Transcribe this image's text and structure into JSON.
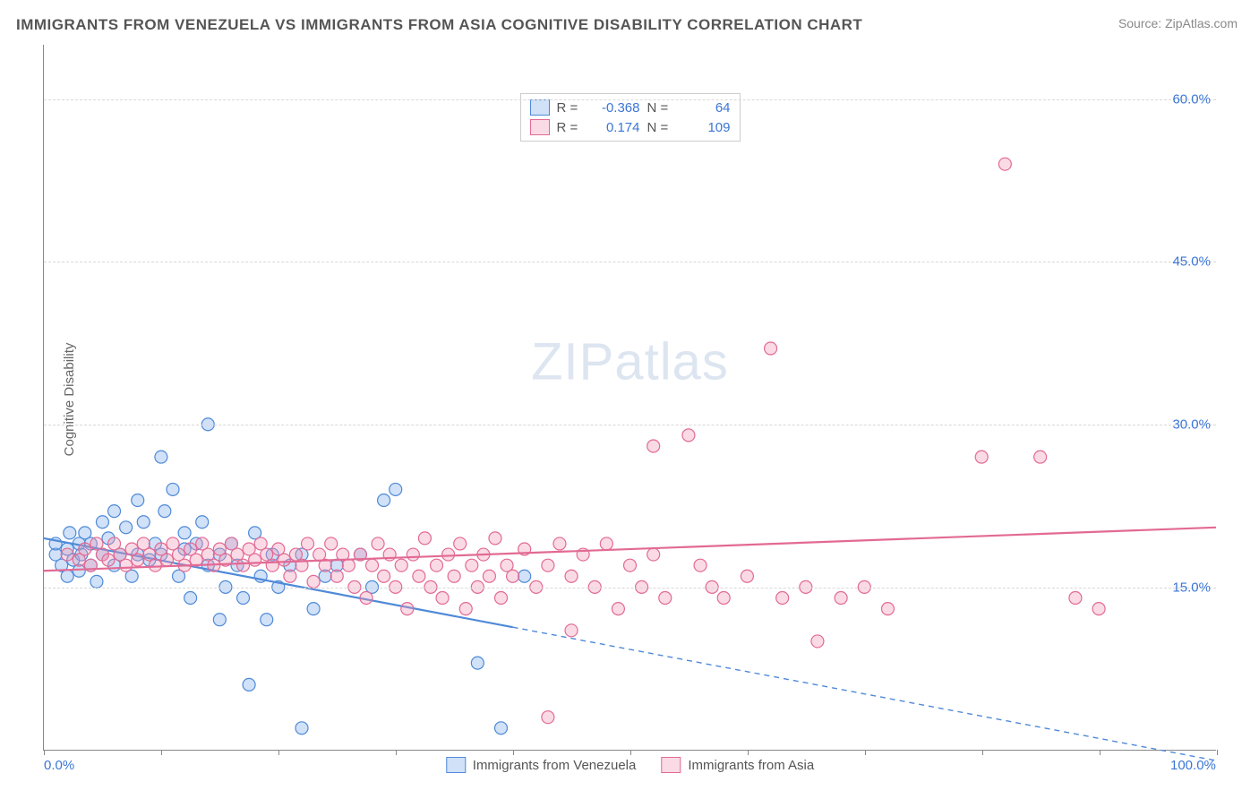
{
  "title": "IMMIGRANTS FROM VENEZUELA VS IMMIGRANTS FROM ASIA COGNITIVE DISABILITY CORRELATION CHART",
  "source": "Source: ZipAtlas.com",
  "ylabel": "Cognitive Disability",
  "watermark_a": "ZIP",
  "watermark_b": "atlas",
  "chart": {
    "type": "scatter",
    "xlim": [
      0,
      100
    ],
    "ylim": [
      0,
      65
    ],
    "xticks": [
      0,
      100
    ],
    "xtick_labels": [
      "0.0%",
      "100.0%"
    ],
    "yticks": [
      15,
      30,
      45,
      60
    ],
    "ytick_labels": [
      "15.0%",
      "30.0%",
      "45.0%",
      "60.0%"
    ],
    "grid_color": "#d8d8d8",
    "axis_color": "#888888",
    "tick_label_color": "#3b76d6",
    "background_color": "#ffffff",
    "marker_radius": 7,
    "marker_stroke_width": 1.2,
    "trend_line_width": 2.2,
    "series": [
      {
        "key": "venezuela",
        "label": "Immigrants from Venezuela",
        "fill": "rgba(120,170,235,0.35)",
        "stroke": "#4f8ad8",
        "R": "-0.368",
        "N": "64",
        "trend": {
          "x1": 0,
          "y1": 19.5,
          "x2": 100,
          "y2": -1.0,
          "solid_until_x": 40
        },
        "points": [
          [
            1,
            18
          ],
          [
            1,
            19
          ],
          [
            1.5,
            17
          ],
          [
            2,
            18.5
          ],
          [
            2,
            16
          ],
          [
            2.2,
            20
          ],
          [
            2.5,
            17.5
          ],
          [
            3,
            19
          ],
          [
            3,
            16.5
          ],
          [
            3.2,
            18
          ],
          [
            3.5,
            20
          ],
          [
            4,
            17
          ],
          [
            4,
            19
          ],
          [
            4.5,
            15.5
          ],
          [
            5,
            21
          ],
          [
            5,
            18
          ],
          [
            5.5,
            19.5
          ],
          [
            6,
            17
          ],
          [
            6,
            22
          ],
          [
            6.5,
            18
          ],
          [
            7,
            20.5
          ],
          [
            7.5,
            16
          ],
          [
            8,
            23
          ],
          [
            8,
            18
          ],
          [
            8.5,
            21
          ],
          [
            9,
            17.5
          ],
          [
            9.5,
            19
          ],
          [
            10,
            27
          ],
          [
            10,
            18
          ],
          [
            10.3,
            22
          ],
          [
            11,
            24
          ],
          [
            11.5,
            16
          ],
          [
            12,
            18.5
          ],
          [
            12,
            20
          ],
          [
            12.5,
            14
          ],
          [
            13,
            19
          ],
          [
            13.5,
            21
          ],
          [
            14,
            17
          ],
          [
            14,
            30
          ],
          [
            15,
            18
          ],
          [
            15,
            12
          ],
          [
            15.5,
            15
          ],
          [
            16,
            19
          ],
          [
            16.5,
            17
          ],
          [
            17,
            14
          ],
          [
            17.5,
            6
          ],
          [
            18,
            20
          ],
          [
            18.5,
            16
          ],
          [
            19,
            12
          ],
          [
            19.5,
            18
          ],
          [
            20,
            15
          ],
          [
            21,
            17
          ],
          [
            22,
            2
          ],
          [
            22,
            18
          ],
          [
            23,
            13
          ],
          [
            24,
            16
          ],
          [
            25,
            17
          ],
          [
            27,
            18
          ],
          [
            28,
            15
          ],
          [
            29,
            23
          ],
          [
            30,
            24
          ],
          [
            37,
            8
          ],
          [
            39,
            2
          ],
          [
            41,
            16
          ]
        ]
      },
      {
        "key": "asia",
        "label": "Immigrants from Asia",
        "fill": "rgba(240,150,180,0.35)",
        "stroke": "#e26a94",
        "R": "0.174",
        "N": "109",
        "trend": {
          "x1": 0,
          "y1": 16.5,
          "x2": 100,
          "y2": 20.5,
          "solid_until_x": 100
        },
        "points": [
          [
            2,
            18
          ],
          [
            3,
            17.5
          ],
          [
            3.5,
            18.5
          ],
          [
            4,
            17
          ],
          [
            4.5,
            19
          ],
          [
            5,
            18
          ],
          [
            5.5,
            17.5
          ],
          [
            6,
            19
          ],
          [
            6.5,
            18
          ],
          [
            7,
            17
          ],
          [
            7.5,
            18.5
          ],
          [
            8,
            17.5
          ],
          [
            8.5,
            19
          ],
          [
            9,
            18
          ],
          [
            9.5,
            17
          ],
          [
            10,
            18.5
          ],
          [
            10.5,
            17.5
          ],
          [
            11,
            19
          ],
          [
            11.5,
            18
          ],
          [
            12,
            17
          ],
          [
            12.5,
            18.5
          ],
          [
            13,
            17.5
          ],
          [
            13.5,
            19
          ],
          [
            14,
            18
          ],
          [
            14.5,
            17
          ],
          [
            15,
            18.5
          ],
          [
            15.5,
            17.5
          ],
          [
            16,
            19
          ],
          [
            16.5,
            18
          ],
          [
            17,
            17
          ],
          [
            17.5,
            18.5
          ],
          [
            18,
            17.5
          ],
          [
            18.5,
            19
          ],
          [
            19,
            18
          ],
          [
            19.5,
            17
          ],
          [
            20,
            18.5
          ],
          [
            20.5,
            17.5
          ],
          [
            21,
            16
          ],
          [
            21.5,
            18
          ],
          [
            22,
            17
          ],
          [
            22.5,
            19
          ],
          [
            23,
            15.5
          ],
          [
            23.5,
            18
          ],
          [
            24,
            17
          ],
          [
            24.5,
            19
          ],
          [
            25,
            16
          ],
          [
            25.5,
            18
          ],
          [
            26,
            17
          ],
          [
            26.5,
            15
          ],
          [
            27,
            18
          ],
          [
            27.5,
            14
          ],
          [
            28,
            17
          ],
          [
            28.5,
            19
          ],
          [
            29,
            16
          ],
          [
            29.5,
            18
          ],
          [
            30,
            15
          ],
          [
            30.5,
            17
          ],
          [
            31,
            13
          ],
          [
            31.5,
            18
          ],
          [
            32,
            16
          ],
          [
            32.5,
            19.5
          ],
          [
            33,
            15
          ],
          [
            33.5,
            17
          ],
          [
            34,
            14
          ],
          [
            34.5,
            18
          ],
          [
            35,
            16
          ],
          [
            35.5,
            19
          ],
          [
            36,
            13
          ],
          [
            36.5,
            17
          ],
          [
            37,
            15
          ],
          [
            37.5,
            18
          ],
          [
            38,
            16
          ],
          [
            38.5,
            19.5
          ],
          [
            39,
            14
          ],
          [
            39.5,
            17
          ],
          [
            40,
            16
          ],
          [
            41,
            18.5
          ],
          [
            42,
            15
          ],
          [
            43,
            17
          ],
          [
            43,
            3
          ],
          [
            44,
            19
          ],
          [
            45,
            16
          ],
          [
            45,
            11
          ],
          [
            46,
            18
          ],
          [
            47,
            15
          ],
          [
            48,
            19
          ],
          [
            49,
            13
          ],
          [
            50,
            17
          ],
          [
            51,
            15
          ],
          [
            52,
            18
          ],
          [
            52,
            28
          ],
          [
            53,
            14
          ],
          [
            55,
            29
          ],
          [
            56,
            17
          ],
          [
            57,
            15
          ],
          [
            58,
            14
          ],
          [
            60,
            16
          ],
          [
            62,
            37
          ],
          [
            63,
            14
          ],
          [
            65,
            15
          ],
          [
            66,
            10
          ],
          [
            68,
            14
          ],
          [
            70,
            15
          ],
          [
            72,
            13
          ],
          [
            80,
            27
          ],
          [
            82,
            54
          ],
          [
            85,
            27
          ],
          [
            88,
            14
          ],
          [
            90,
            13
          ]
        ]
      }
    ]
  },
  "stats_box_labels": {
    "R": "R =",
    "N": "N ="
  },
  "legend_bottom": [
    {
      "label": "Immigrants from Venezuela",
      "fill": "rgba(120,170,235,0.35)",
      "stroke": "#4f8ad8"
    },
    {
      "label": "Immigrants from Asia",
      "fill": "rgba(240,150,180,0.35)",
      "stroke": "#e26a94"
    }
  ]
}
